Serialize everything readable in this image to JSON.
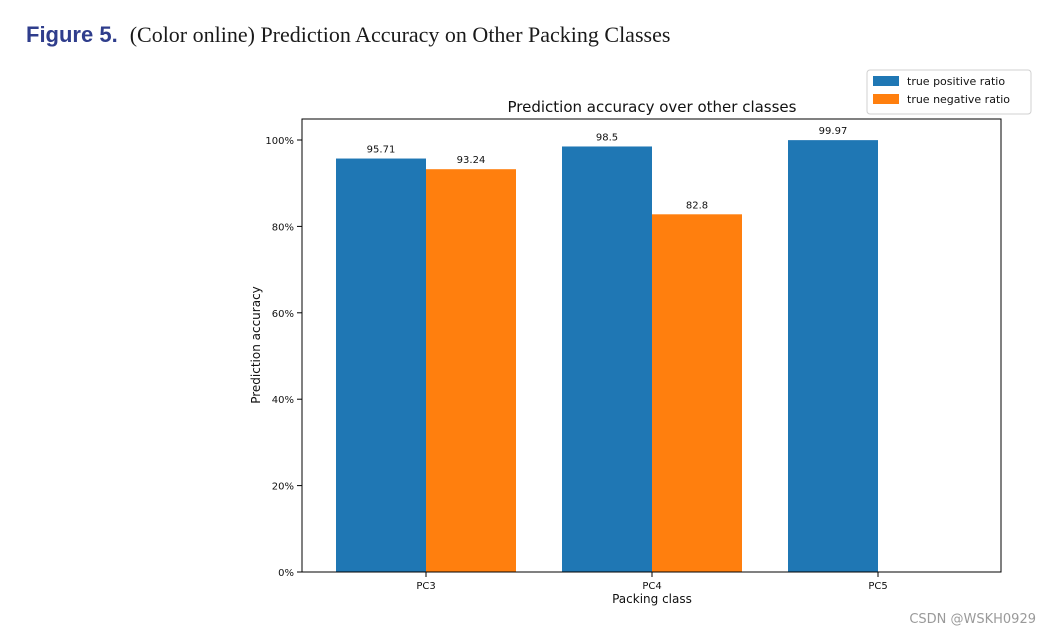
{
  "figure": {
    "label": "Figure 5.",
    "caption": "(Color online) Prediction Accuracy on Other Packing Classes"
  },
  "chart_data": {
    "type": "bar",
    "title": "Prediction accuracy over other classes",
    "xlabel": "Packing class",
    "ylabel": "Prediction accuracy",
    "categories": [
      "PC3",
      "PC4",
      "PC5"
    ],
    "series": [
      {
        "name": "true positive ratio",
        "color": "#1f77b4",
        "values": [
          95.71,
          98.5,
          99.97
        ],
        "labels": [
          "95.71",
          "98.5",
          "99.97"
        ]
      },
      {
        "name": "true negative ratio",
        "color": "#ff7f0e",
        "values": [
          93.24,
          82.8,
          null
        ],
        "labels": [
          "93.24",
          "82.8",
          null
        ]
      }
    ],
    "ylim": [
      0,
      100
    ],
    "yticks": [
      0,
      20,
      40,
      60,
      80,
      100
    ],
    "ytick_labels": [
      "0%",
      "20%",
      "40%",
      "60%",
      "80%",
      "100%"
    ],
    "legend_position": "top-right",
    "grid": false
  },
  "watermark": "CSDN @WSKH0929"
}
